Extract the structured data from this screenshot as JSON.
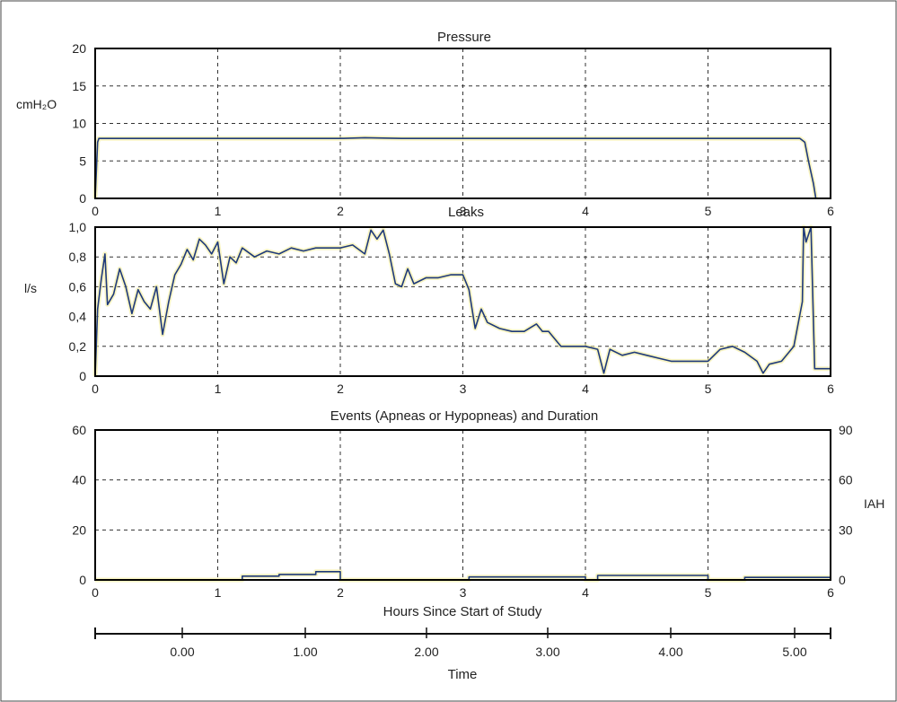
{
  "chart_data": [
    {
      "type": "line",
      "title": "Pressure",
      "ylabel": "cmH₂O",
      "xlim": [
        0,
        6
      ],
      "ylim": [
        0,
        20
      ],
      "x_ticks": [
        "0",
        "1",
        "2",
        "3",
        "4",
        "5",
        "6"
      ],
      "y_ticks": [
        "0",
        "5",
        "10",
        "15",
        "20"
      ],
      "grid": true,
      "series": [
        {
          "color": "#1f3a7a",
          "x": [
            0,
            0.02,
            0.03,
            0.1,
            0.5,
            1.0,
            2.0,
            2.2,
            2.5,
            3.0,
            4.0,
            5.0,
            5.75,
            5.79,
            5.82,
            5.86,
            5.88
          ],
          "y": [
            0,
            7.5,
            8.0,
            8.0,
            8.0,
            8.0,
            8.0,
            8.1,
            8.0,
            8.0,
            8.0,
            8.0,
            8.0,
            7.5,
            5.0,
            2.0,
            0
          ]
        }
      ]
    },
    {
      "type": "line",
      "title": "Leaks",
      "ylabel": "l/s",
      "xlim": [
        0,
        6
      ],
      "ylim": [
        0,
        1.0
      ],
      "x_ticks": [
        "0",
        "1",
        "2",
        "3",
        "4",
        "5",
        "6"
      ],
      "y_ticks": [
        "0",
        "0,2",
        "0,4",
        "0,6",
        "0,8",
        "1,0"
      ],
      "grid": true,
      "series": [
        {
          "color": "#1f3a7a",
          "x": [
            0,
            0.02,
            0.05,
            0.08,
            0.1,
            0.15,
            0.2,
            0.25,
            0.3,
            0.35,
            0.4,
            0.45,
            0.5,
            0.55,
            0.6,
            0.65,
            0.7,
            0.75,
            0.8,
            0.85,
            0.9,
            0.95,
            1.0,
            1.05,
            1.1,
            1.15,
            1.2,
            1.3,
            1.4,
            1.5,
            1.6,
            1.7,
            1.8,
            1.9,
            2.0,
            2.1,
            2.2,
            2.25,
            2.3,
            2.35,
            2.4,
            2.45,
            2.5,
            2.55,
            2.6,
            2.7,
            2.8,
            2.9,
            3.0,
            3.05,
            3.1,
            3.15,
            3.2,
            3.3,
            3.4,
            3.5,
            3.6,
            3.65,
            3.7,
            3.8,
            3.9,
            4.0,
            4.1,
            4.15,
            4.2,
            4.3,
            4.4,
            4.5,
            4.6,
            4.7,
            4.8,
            4.9,
            5.0,
            5.1,
            5.2,
            5.3,
            5.4,
            5.45,
            5.5,
            5.6,
            5.7,
            5.77,
            5.78,
            5.8,
            5.84,
            5.87,
            6.0
          ],
          "y": [
            0,
            0.45,
            0.65,
            0.82,
            0.48,
            0.55,
            0.72,
            0.6,
            0.42,
            0.58,
            0.5,
            0.45,
            0.6,
            0.28,
            0.5,
            0.68,
            0.75,
            0.85,
            0.78,
            0.92,
            0.88,
            0.82,
            0.9,
            0.62,
            0.8,
            0.76,
            0.86,
            0.8,
            0.84,
            0.82,
            0.86,
            0.84,
            0.86,
            0.86,
            0.86,
            0.88,
            0.82,
            0.98,
            0.92,
            0.98,
            0.82,
            0.62,
            0.6,
            0.72,
            0.62,
            0.66,
            0.66,
            0.68,
            0.68,
            0.58,
            0.32,
            0.45,
            0.36,
            0.32,
            0.3,
            0.3,
            0.35,
            0.3,
            0.3,
            0.2,
            0.2,
            0.2,
            0.18,
            0.02,
            0.18,
            0.14,
            0.16,
            0.14,
            0.12,
            0.1,
            0.1,
            0.1,
            0.1,
            0.18,
            0.2,
            0.16,
            0.1,
            0.02,
            0.08,
            0.1,
            0.2,
            0.5,
            1.0,
            0.9,
            1.0,
            0.05,
            0.05
          ]
        }
      ]
    },
    {
      "type": "line",
      "title": "Events (Apneas or Hypopneas) and Duration",
      "ylabel_right": "IAH",
      "xlim": [
        0,
        6
      ],
      "ylim": [
        0,
        60
      ],
      "ylim_right": [
        0,
        90
      ],
      "x_ticks": [
        "0",
        "1",
        "2",
        "3",
        "4",
        "5",
        "6"
      ],
      "y_ticks": [
        "0",
        "20",
        "40",
        "60"
      ],
      "y_ticks_right": [
        "0",
        "30",
        "60",
        "90"
      ],
      "grid": true,
      "series": [
        {
          "color": "#1f3a7a",
          "x": [
            0,
            1.2,
            1.2,
            1.5,
            1.5,
            1.8,
            1.8,
            2.0,
            2.0,
            3.05,
            3.05,
            4.0,
            4.0,
            4.1,
            4.1,
            5.0,
            5.0,
            5.3,
            5.3,
            6.0
          ],
          "y": [
            0,
            0,
            1.5,
            1.5,
            2.2,
            2.2,
            3.3,
            3.3,
            0,
            0,
            1.2,
            1.2,
            0,
            0,
            1.8,
            1.8,
            0,
            0,
            1.0,
            1.0
          ]
        }
      ]
    }
  ],
  "axis_footer": {
    "label_upper": "Hours Since Start of Study",
    "label_lower": "Time",
    "ticks": [
      "0.00",
      "1.00",
      "2.00",
      "3.00",
      "4.00",
      "5.00"
    ]
  }
}
